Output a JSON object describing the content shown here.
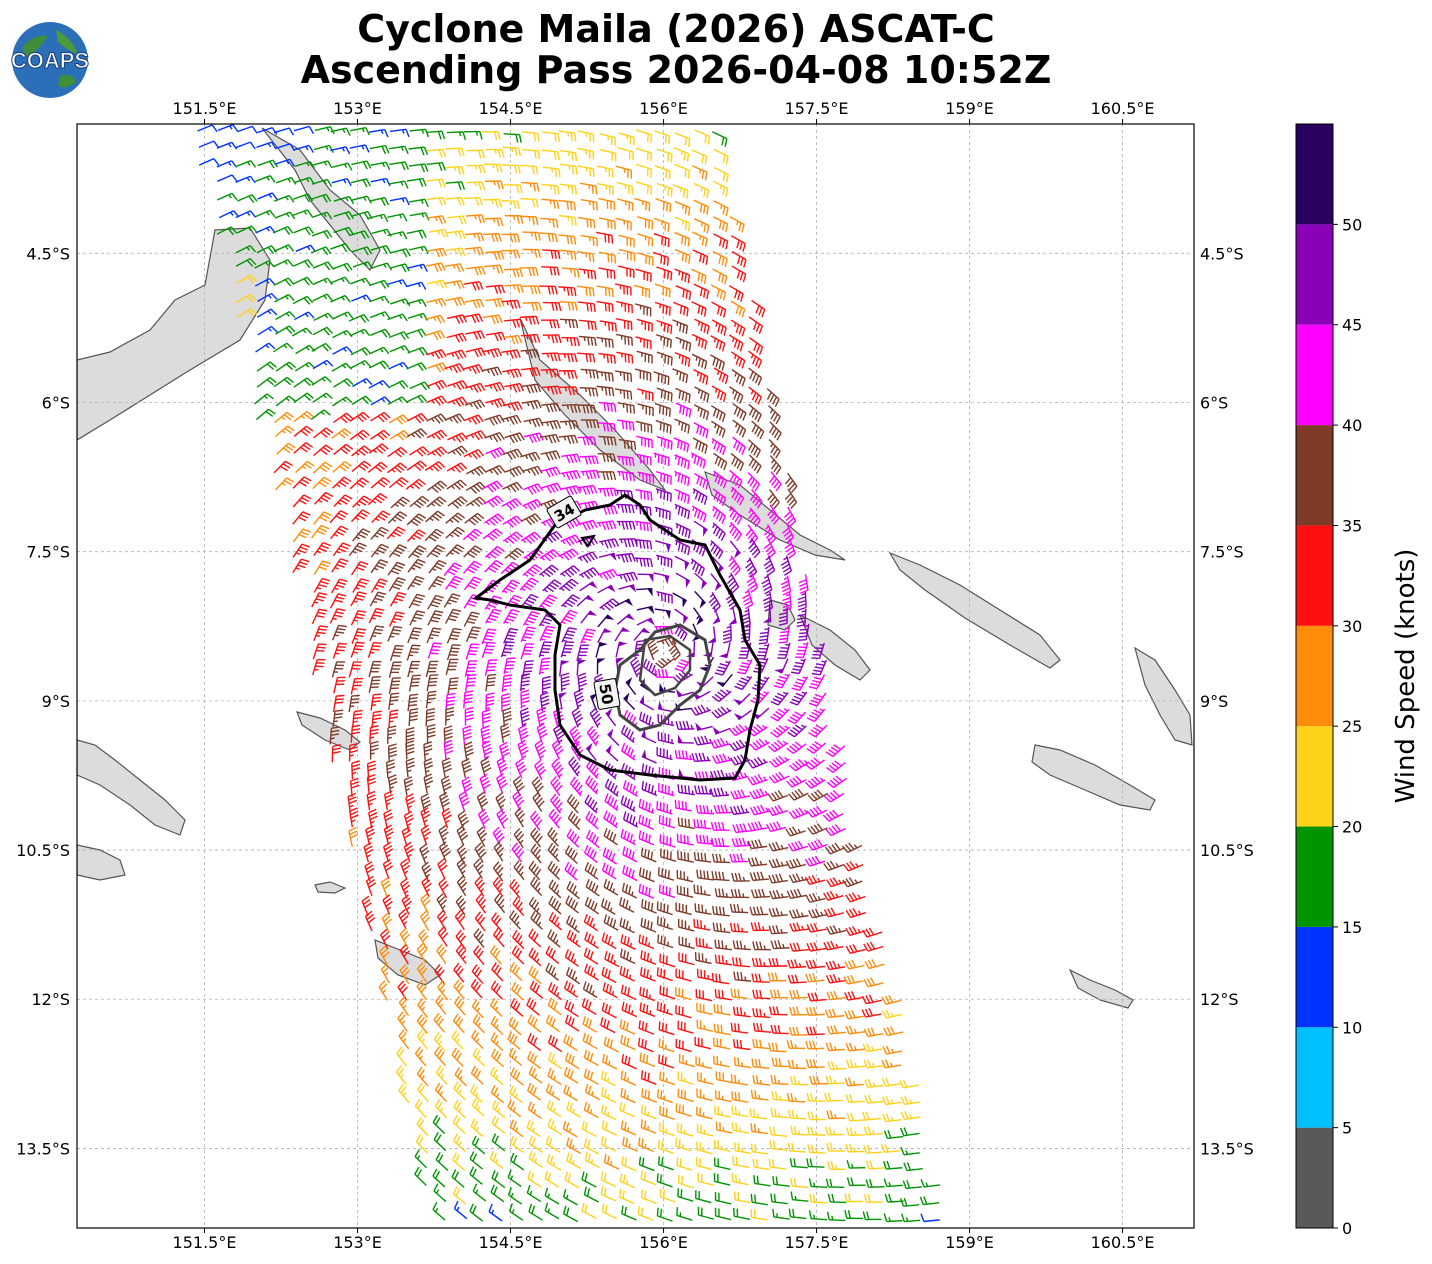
{
  "title_line1": "Cyclone Maila (2026) ASCAT-C",
  "title_line2": "Ascending Pass 2026-04-08 10:52Z",
  "logo_text": "COAPS",
  "map": {
    "lon_ticks": [
      "151.5°E",
      "153°E",
      "154.5°E",
      "156°E",
      "157.5°E",
      "159°E",
      "160.5°E"
    ],
    "lat_ticks": [
      "4.5°S",
      "6°S",
      "7.5°S",
      "9°S",
      "10.5°S",
      "12°S",
      "13.5°S"
    ],
    "lon_values": [
      151.5,
      153,
      154.5,
      156,
      157.5,
      159,
      160.5
    ],
    "lat_values": [
      -4.5,
      -6,
      -7.5,
      -9,
      -10.5,
      -12,
      -13.5
    ],
    "lon_range": [
      150.25,
      161.2
    ],
    "lat_range": [
      -14.3,
      -3.2
    ],
    "contour_labels": [
      "34",
      "50"
    ],
    "grid": true
  },
  "colorbar": {
    "label": "Wind Speed (knots)",
    "ticks": [
      "0",
      "5",
      "10",
      "15",
      "20",
      "25",
      "30",
      "35",
      "40",
      "45",
      "50"
    ],
    "bins": [
      {
        "range": [
          0,
          5
        ],
        "color": "#595959"
      },
      {
        "range": [
          5,
          10
        ],
        "color": "#00bfff"
      },
      {
        "range": [
          10,
          15
        ],
        "color": "#0033ff"
      },
      {
        "range": [
          15,
          20
        ],
        "color": "#009400"
      },
      {
        "range": [
          20,
          25
        ],
        "color": "#ffd21a"
      },
      {
        "range": [
          25,
          30
        ],
        "color": "#ff8c0a"
      },
      {
        "range": [
          30,
          35
        ],
        "color": "#ff1010"
      },
      {
        "range": [
          35,
          40
        ],
        "color": "#7f3a28"
      },
      {
        "range": [
          40,
          45
        ],
        "color": "#ff00ff"
      },
      {
        "range": [
          45,
          50
        ],
        "color": "#8a00b8"
      },
      {
        "range": [
          50,
          55
        ],
        "color": "#2a0060"
      }
    ]
  },
  "storm_center": {
    "lon": 156.0,
    "lat": -8.5
  }
}
